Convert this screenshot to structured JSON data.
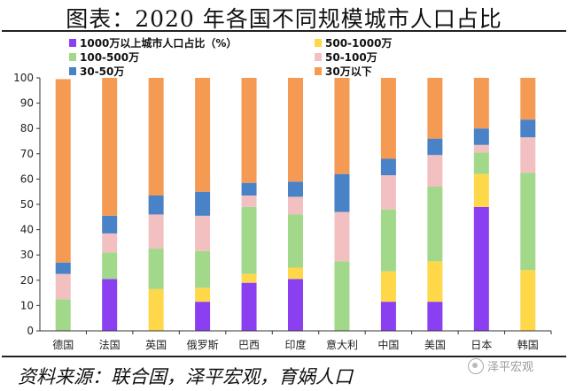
{
  "title": "图表：2020 年各国不同规模城市人口占比",
  "source": "资料来源：联合国，泽平宏观，育娲人口",
  "watermark": "泽平宏观",
  "chart_data": {
    "type": "bar",
    "stacked": true,
    "categories": [
      "德国",
      "法国",
      "英国",
      "俄罗斯",
      "巴西",
      "印度",
      "意大利",
      "中国",
      "美国",
      "日本",
      "韩国"
    ],
    "ylim": [
      0,
      100
    ],
    "yticks": [
      0,
      10,
      20,
      30,
      40,
      50,
      60,
      70,
      80,
      90,
      100
    ],
    "legend_position": "top",
    "series": [
      {
        "name": "1000万以上城市人口占比（%）",
        "color": "#8a3ff0",
        "values": [
          0,
          20.5,
          0,
          11.5,
          19,
          20.5,
          0,
          11.5,
          11.5,
          49,
          0
        ]
      },
      {
        "name": "500-1000万",
        "color": "#ffd84a",
        "values": [
          0,
          0,
          16.5,
          5.5,
          3.5,
          4.5,
          0,
          12,
          16,
          13,
          24
        ]
      },
      {
        "name": "100-500万",
        "color": "#a2d88a",
        "values": [
          12.5,
          10.5,
          16,
          14.5,
          26.5,
          21,
          27.5,
          24.5,
          29.5,
          8.5,
          38.5
        ]
      },
      {
        "name": "50-100万",
        "color": "#f2c0c0",
        "values": [
          10,
          7.5,
          13.5,
          14,
          4.5,
          7,
          19.5,
          13.5,
          12.5,
          3,
          14
        ]
      },
      {
        "name": "30-50万",
        "color": "#4a82c8",
        "values": [
          4.5,
          7,
          7.5,
          9.5,
          5,
          6,
          15,
          6.5,
          6.5,
          6.5,
          7
        ]
      },
      {
        "name": "30万以下",
        "color": "#f59a52",
        "values": [
          72.5,
          54.5,
          46.5,
          45,
          41.5,
          41,
          38,
          32,
          24,
          20,
          16.5
        ]
      }
    ]
  }
}
